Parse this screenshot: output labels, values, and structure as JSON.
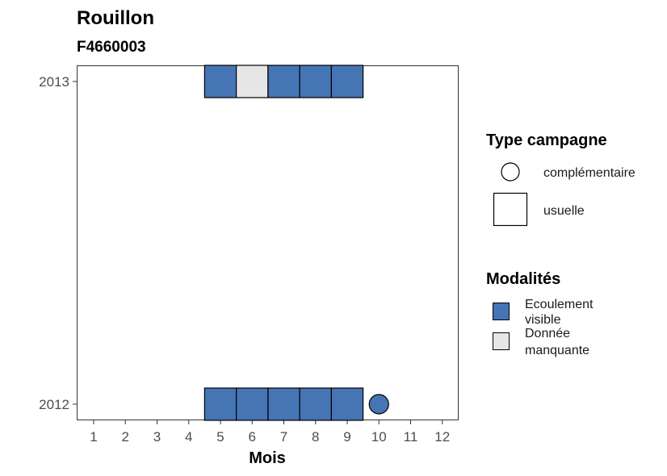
{
  "title": "Rouillon",
  "subtitle": "F4660003",
  "chart_data": {
    "type": "heatmap",
    "xlabel": "Mois",
    "ylabel": "",
    "x_ticks": [
      "1",
      "2",
      "3",
      "4",
      "5",
      "6",
      "7",
      "8",
      "9",
      "10",
      "11",
      "12"
    ],
    "y_ticks": [
      "2012",
      "2013"
    ],
    "xlim": [
      0.5,
      12.5
    ],
    "ylim": [
      2012,
      2013
    ],
    "grid": false,
    "legend_placement": "right",
    "colors": {
      "Ecoulement visible": "#4575b4",
      "Donnée manquante": "#e6e6e6"
    },
    "points": [
      {
        "year": 2013,
        "month": 5,
        "modalite": "Ecoulement visible",
        "campagne": "usuelle"
      },
      {
        "year": 2013,
        "month": 6,
        "modalite": "Donnée manquante",
        "campagne": "usuelle"
      },
      {
        "year": 2013,
        "month": 7,
        "modalite": "Ecoulement visible",
        "campagne": "usuelle"
      },
      {
        "year": 2013,
        "month": 8,
        "modalite": "Ecoulement visible",
        "campagne": "usuelle"
      },
      {
        "year": 2013,
        "month": 9,
        "modalite": "Ecoulement visible",
        "campagne": "usuelle"
      },
      {
        "year": 2012,
        "month": 5,
        "modalite": "Ecoulement visible",
        "campagne": "usuelle"
      },
      {
        "year": 2012,
        "month": 6,
        "modalite": "Ecoulement visible",
        "campagne": "usuelle"
      },
      {
        "year": 2012,
        "month": 7,
        "modalite": "Ecoulement visible",
        "campagne": "usuelle"
      },
      {
        "year": 2012,
        "month": 8,
        "modalite": "Ecoulement visible",
        "campagne": "usuelle"
      },
      {
        "year": 2012,
        "month": 9,
        "modalite": "Ecoulement visible",
        "campagne": "usuelle"
      },
      {
        "year": 2012,
        "month": 10,
        "modalite": "Ecoulement visible",
        "campagne": "complémentaire"
      }
    ]
  },
  "legend": {
    "type_title": "Type campagne",
    "type_items": [
      {
        "label": "complémentaire",
        "shape": "circle"
      },
      {
        "label": "usuelle",
        "shape": "square"
      }
    ],
    "mod_title": "Modalités",
    "mod_items": [
      {
        "line1": "Ecoulement",
        "line2": "visible",
        "color": "#4575b4"
      },
      {
        "line1": "Donnée",
        "line2": "manquante",
        "color": "#e6e6e6"
      }
    ]
  }
}
